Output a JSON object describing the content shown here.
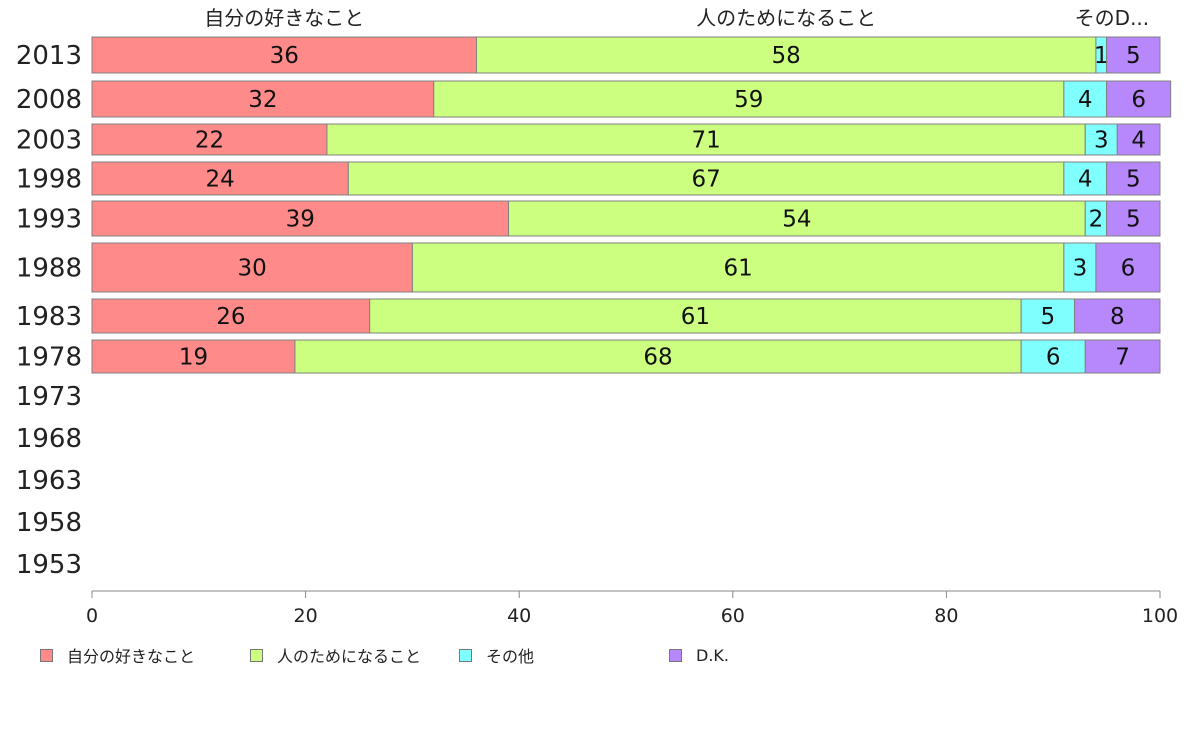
{
  "chart_data": {
    "type": "bar",
    "orientation": "horizontal",
    "stacked": true,
    "categories": [
      "2013",
      "2008",
      "2003",
      "1998",
      "1993",
      "1988",
      "1983",
      "1978",
      "1973",
      "1968",
      "1963",
      "1958",
      "1953"
    ],
    "series": [
      {
        "name": "自分の好きなこと",
        "color": "#ff8a8a",
        "values": [
          36,
          32,
          22,
          24,
          39,
          30,
          26,
          19,
          null,
          null,
          null,
          null,
          null
        ]
      },
      {
        "name": "人のためになること",
        "color": "#ccff80",
        "values": [
          58,
          59,
          71,
          67,
          54,
          61,
          61,
          68,
          null,
          null,
          null,
          null,
          null
        ]
      },
      {
        "name": "その他",
        "color": "#80ffff",
        "values": [
          1,
          4,
          3,
          4,
          2,
          3,
          5,
          6,
          null,
          null,
          null,
          null,
          null
        ]
      },
      {
        "name": "D.K.",
        "color": "#b787fc",
        "values": [
          5,
          6,
          4,
          5,
          5,
          6,
          8,
          7,
          null,
          null,
          null,
          null,
          null
        ]
      }
    ],
    "top_labels": [
      "自分の好きなこと",
      "人のためになること",
      "そのD..."
    ],
    "xlim": [
      0,
      100
    ],
    "xticks": [
      "0",
      "20",
      "40",
      "60",
      "80",
      "100"
    ],
    "grid": false,
    "legend_position": "bottom"
  }
}
